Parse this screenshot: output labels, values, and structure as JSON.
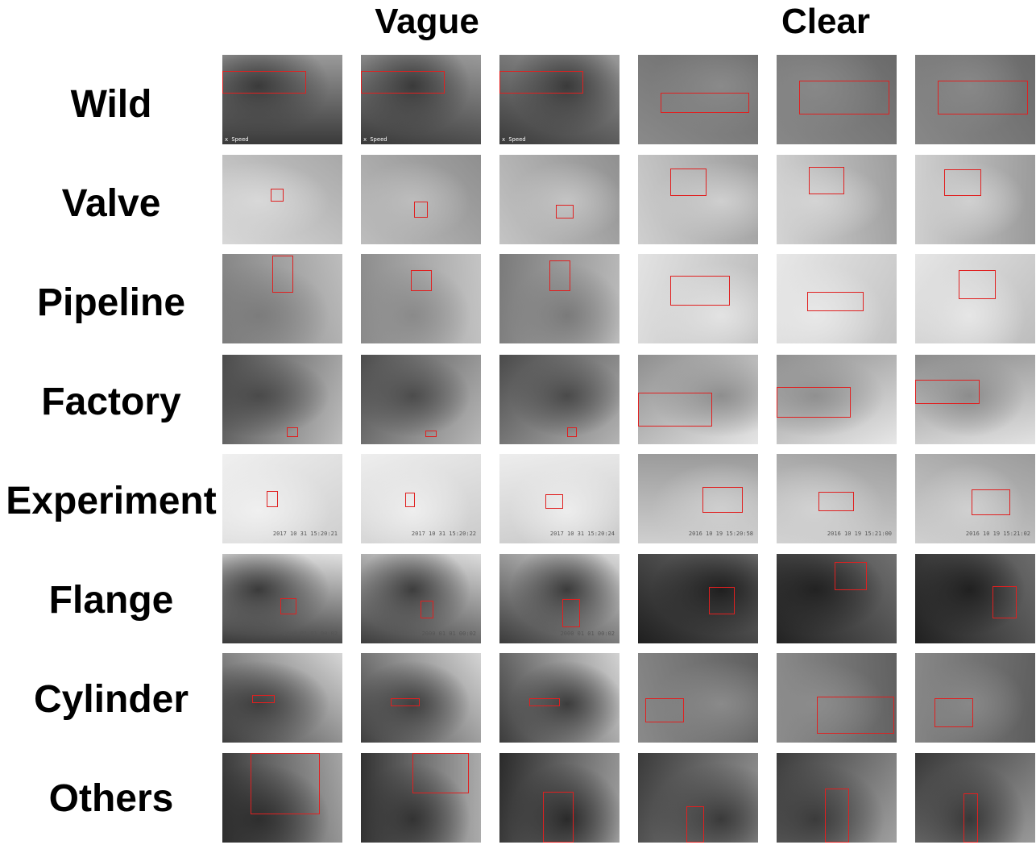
{
  "headers": {
    "vague": "Vague",
    "clear": "Clear"
  },
  "rows": [
    {
      "label": "Wild",
      "tones": [
        [
          "#3a3a3a",
          "#9a9a9a"
        ],
        [
          "#3a3a3a",
          "#9a9a9a"
        ],
        [
          "#3a3a3a",
          "#9a9a9a"
        ],
        [
          "#8a8a8a",
          "#6a6a6a"
        ],
        [
          "#888888",
          "#6a6a6a"
        ],
        [
          "#888888",
          "#6a6a6a"
        ]
      ],
      "overlay_text": [
        "x Speed",
        "x Speed",
        "x Speed",
        "",
        "",
        ""
      ]
    },
    {
      "label": "Valve",
      "tones": [
        [
          "#d8d8d8",
          "#a8a8a8"
        ],
        [
          "#bdbdbd",
          "#8f8f8f"
        ],
        [
          "#c4c4c4",
          "#909090"
        ],
        [
          "#cfcfcf",
          "#9c9c9c"
        ],
        [
          "#d4d4d4",
          "#9d9d9d"
        ],
        [
          "#d0d0d0",
          "#9a9a9a"
        ]
      ],
      "overlay_text": [
        "",
        "",
        "",
        "",
        "",
        ""
      ]
    },
    {
      "label": "Pipeline",
      "tones": [
        [
          "#7c7c7c",
          "#bdbdbd"
        ],
        [
          "#8a8a8a",
          "#c4c4c4"
        ],
        [
          "#7a7a7a",
          "#bbbbbb"
        ],
        [
          "#e3e3e3",
          "#b9b9b9"
        ],
        [
          "#e8e8e8",
          "#c3c3c3"
        ],
        [
          "#e6e6e6",
          "#bdbdbd"
        ]
      ],
      "overlay_text": [
        "",
        "",
        "",
        "",
        "",
        ""
      ]
    },
    {
      "label": "Factory",
      "tones": [
        [
          "#4a4a4a",
          "#bdbdbd"
        ],
        [
          "#4c4c4c",
          "#b8b8b8"
        ],
        [
          "#4a4a4a",
          "#b3b3b3"
        ],
        [
          "#8e8e8e",
          "#e5e5e5"
        ],
        [
          "#909090",
          "#e7e7e7"
        ],
        [
          "#8c8c8c",
          "#e2e2e2"
        ]
      ],
      "overlay_text": [
        "",
        "",
        "",
        "",
        "",
        ""
      ]
    },
    {
      "label": "Experiment",
      "tones": [
        [
          "#f0f0f0",
          "#cfcfcf"
        ],
        [
          "#eeeeee",
          "#cbcbcb"
        ],
        [
          "#ededed",
          "#c9c9c9"
        ],
        [
          "#cfcfcf",
          "#9a9a9a"
        ],
        [
          "#d2d2d2",
          "#9d9d9d"
        ],
        [
          "#d0d0d0",
          "#9b9b9b"
        ]
      ],
      "overlay_text": [
        "2017 10 31 15:20:21",
        "2017 10 31 15:20:22",
        "2017 10 31 15:20:24",
        "2016 10 19 15:20:58",
        "2016 10 19 15:21:00",
        "2016 10 19 15:21:02"
      ]
    },
    {
      "label": "Flange",
      "tones": [
        [
          "#3a3a3a",
          "#e0e0e0"
        ],
        [
          "#3d3d3d",
          "#dcdcdc"
        ],
        [
          "#3b3b3b",
          "#dadada"
        ],
        [
          "#1f1f1f",
          "#6e6e6e"
        ],
        [
          "#222222",
          "#707070"
        ],
        [
          "#202020",
          "#6c6c6c"
        ]
      ],
      "overlay_text": [
        "2000 01 01 00:02",
        "2000 01 01 00:02",
        "2000 01 01 00:02",
        "",
        "",
        ""
      ]
    },
    {
      "label": "Cylinder",
      "tones": [
        [
          "#3e3e3e",
          "#d6d6d6"
        ],
        [
          "#3f3f3f",
          "#d4d4d4"
        ],
        [
          "#3c3c3c",
          "#d2d2d2"
        ],
        [
          "#8a8a8a",
          "#5f5f5f"
        ],
        [
          "#8c8c8c",
          "#616161"
        ],
        [
          "#888888",
          "#5d5d5d"
        ]
      ],
      "overlay_text": [
        "",
        "",
        "",
        "",
        "",
        ""
      ]
    },
    {
      "label": "Others",
      "tones": [
        [
          "#2e2e2e",
          "#a5a5a5"
        ],
        [
          "#333333",
          "#ababab"
        ],
        [
          "#2a2a2a",
          "#a0a0a0"
        ],
        [
          "#3a3a3a",
          "#9c9c9c"
        ],
        [
          "#3b3b3b",
          "#a0a0a0"
        ],
        [
          "#383838",
          "#9a9a9a"
        ]
      ],
      "overlay_text": [
        "",
        "",
        "",
        "",
        "",
        ""
      ]
    }
  ]
}
